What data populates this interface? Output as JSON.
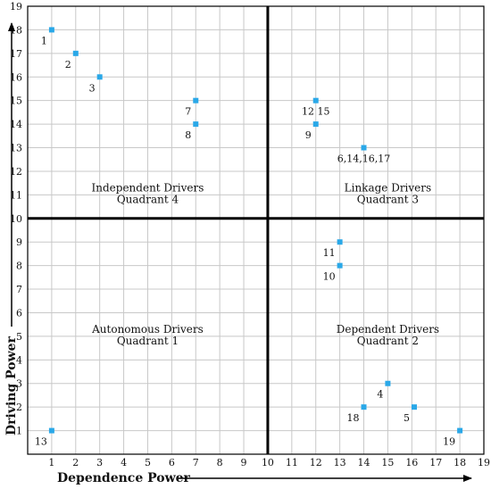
{
  "chart_data": {
    "type": "scatter",
    "xlabel": "Dependence Power",
    "ylabel": "Driving Power",
    "xlim": [
      0,
      19
    ],
    "ylim": [
      0,
      19
    ],
    "x_ticks": [
      "1",
      "2",
      "3",
      "4",
      "5",
      "6",
      "7",
      "8",
      "9",
      "10",
      "11",
      "12",
      "13",
      "14",
      "15",
      "16",
      "17",
      "18",
      "19"
    ],
    "y_ticks": [
      "1",
      "2",
      "3",
      "4",
      "5",
      "6",
      "7",
      "8",
      "9",
      "10",
      "11",
      "12",
      "13",
      "14",
      "15",
      "16",
      "17",
      "18",
      "19"
    ],
    "divider_x": 10,
    "divider_y": 10,
    "grid": true,
    "marker_color": "#2aa8e8",
    "quadrants": [
      {
        "line1": "Independent Drivers",
        "line2": "Quadrant 4",
        "x": 5,
        "y": 11.15
      },
      {
        "line1": "Linkage Drivers",
        "line2": "Quadrant 3",
        "x": 15,
        "y": 11.15
      },
      {
        "line1": "Autonomous Drivers",
        "line2": "Quadrant 1",
        "x": 5,
        "y": 5.15
      },
      {
        "line1": "Dependent Drivers",
        "line2": "Quadrant 2",
        "x": 15,
        "y": 5.15
      }
    ],
    "points": [
      {
        "label": "1",
        "x": 1,
        "y": 18,
        "pos": "bl"
      },
      {
        "label": "2",
        "x": 2,
        "y": 17,
        "pos": "bl"
      },
      {
        "label": "3",
        "x": 3,
        "y": 16,
        "pos": "bl"
      },
      {
        "label": "7",
        "x": 7,
        "y": 15,
        "pos": "bl"
      },
      {
        "label": "8",
        "x": 7,
        "y": 14,
        "pos": "bl"
      },
      {
        "label": "12 15",
        "x": 12,
        "y": 15,
        "pos": "bc"
      },
      {
        "label": "9",
        "x": 12,
        "y": 14,
        "pos": "bl"
      },
      {
        "label": "6,14,16,17",
        "x": 14,
        "y": 13,
        "pos": "bc"
      },
      {
        "label": "11",
        "x": 13,
        "y": 9,
        "pos": "bl"
      },
      {
        "label": "10",
        "x": 13,
        "y": 8,
        "pos": "bl"
      },
      {
        "label": "4",
        "x": 15,
        "y": 3,
        "pos": "bl"
      },
      {
        "label": "18",
        "x": 14,
        "y": 2,
        "pos": "bl"
      },
      {
        "label": "5",
        "x": 16.1,
        "y": 2,
        "pos": "bl"
      },
      {
        "label": "13",
        "x": 1,
        "y": 1,
        "pos": "bl"
      },
      {
        "label": "19",
        "x": 18,
        "y": 1,
        "pos": "bl"
      }
    ]
  }
}
